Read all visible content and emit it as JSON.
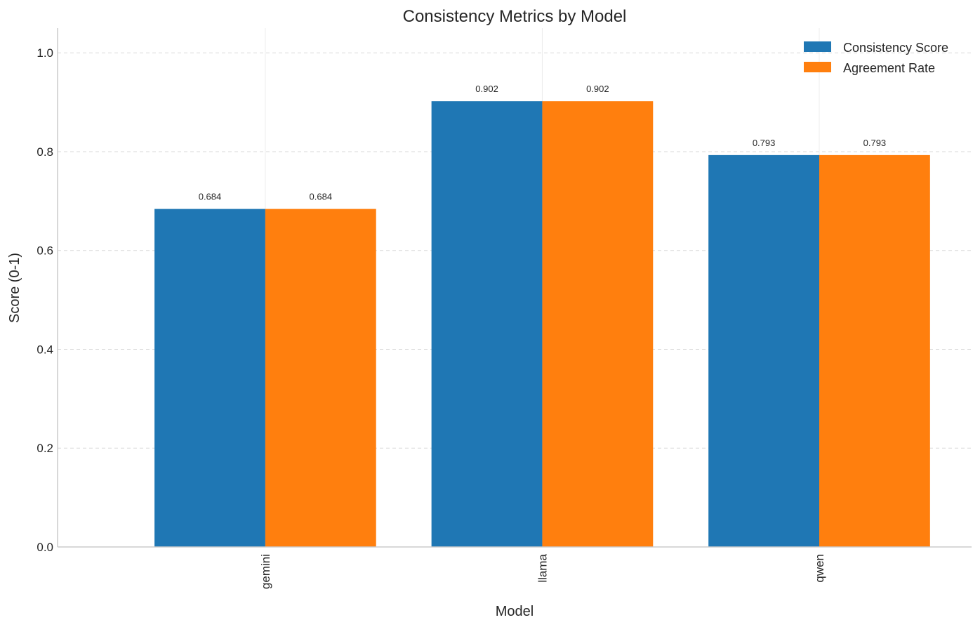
{
  "chart_data": {
    "type": "bar",
    "title": "Consistency Metrics by Model",
    "xlabel": "Model",
    "ylabel": "Score (0-1)",
    "categories": [
      "gemini",
      "llama",
      "qwen"
    ],
    "series": [
      {
        "name": "Consistency Score",
        "color": "#1f77b4",
        "values": [
          0.684,
          0.902,
          0.793
        ],
        "labels": [
          "0.684",
          "0.902",
          "0.793"
        ]
      },
      {
        "name": "Agreement Rate",
        "color": "#ff7f0e",
        "values": [
          0.684,
          0.902,
          0.793
        ],
        "labels": [
          "0.684",
          "0.902",
          "0.793"
        ]
      }
    ],
    "ylim": [
      0,
      1.05
    ],
    "yticks": [
      0.0,
      0.2,
      0.4,
      0.6,
      0.8,
      1.0
    ],
    "ytick_labels": [
      "0.0",
      "0.2",
      "0.4",
      "0.6",
      "0.8",
      "1.0"
    ],
    "grid": true,
    "legend_position": "top-right"
  }
}
